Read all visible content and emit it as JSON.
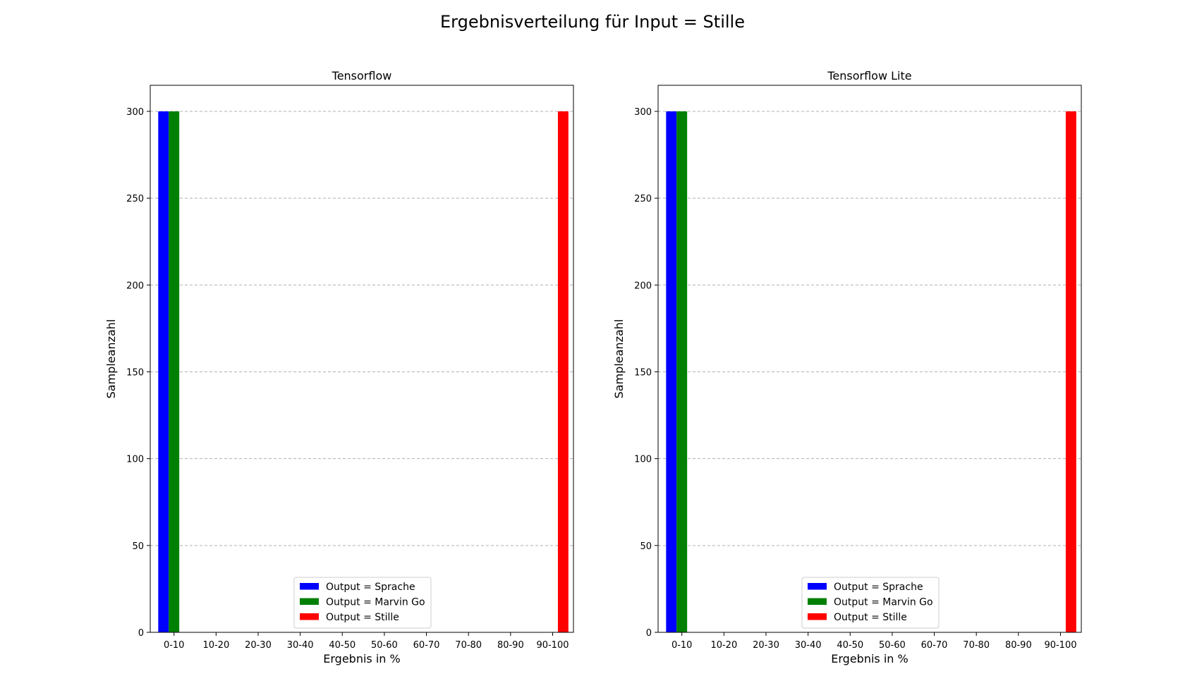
{
  "figure": {
    "suptitle": "Ergebnisverteilung für Input = Stille"
  },
  "colors": {
    "Output = Sprache": "#0000ff",
    "Output = Marvin Go": "#008000",
    "Output = Stille": "#ff0000",
    "grid": "#b0b0b0"
  },
  "chart_data": [
    {
      "type": "bar",
      "title": "Tensorflow",
      "xlabel": "Ergebnis in %",
      "ylabel": "Sampleanzahl",
      "categories": [
        "0-10",
        "10-20",
        "20-30",
        "30-40",
        "40-50",
        "50-60",
        "60-70",
        "70-80",
        "80-90",
        "90-100"
      ],
      "series": [
        {
          "name": "Output = Sprache",
          "values": [
            300,
            0,
            0,
            0,
            0,
            0,
            0,
            0,
            0,
            0
          ]
        },
        {
          "name": "Output = Marvin Go",
          "values": [
            300,
            0,
            0,
            0,
            0,
            0,
            0,
            0,
            0,
            0
          ]
        },
        {
          "name": "Output = Stille",
          "values": [
            0,
            0,
            0,
            0,
            0,
            0,
            0,
            0,
            0,
            300
          ]
        }
      ],
      "yticks": [
        0,
        50,
        100,
        150,
        200,
        250,
        300
      ],
      "ylim": [
        0,
        315
      ],
      "grid": "y dashed",
      "legend": "lower-center"
    },
    {
      "type": "bar",
      "title": "Tensorflow Lite",
      "xlabel": "Ergebnis in %",
      "ylabel": "Sampleanzahl",
      "categories": [
        "0-10",
        "10-20",
        "20-30",
        "30-40",
        "40-50",
        "50-60",
        "60-70",
        "70-80",
        "80-90",
        "90-100"
      ],
      "series": [
        {
          "name": "Output = Sprache",
          "values": [
            300,
            0,
            0,
            0,
            0,
            0,
            0,
            0,
            0,
            0
          ]
        },
        {
          "name": "Output = Marvin Go",
          "values": [
            300,
            0,
            0,
            0,
            0,
            0,
            0,
            0,
            0,
            0
          ]
        },
        {
          "name": "Output = Stille",
          "values": [
            0,
            0,
            0,
            0,
            0,
            0,
            0,
            0,
            0,
            300
          ]
        }
      ],
      "yticks": [
        0,
        50,
        100,
        150,
        200,
        250,
        300
      ],
      "ylim": [
        0,
        315
      ],
      "grid": "y dashed",
      "legend": "lower-center"
    }
  ]
}
